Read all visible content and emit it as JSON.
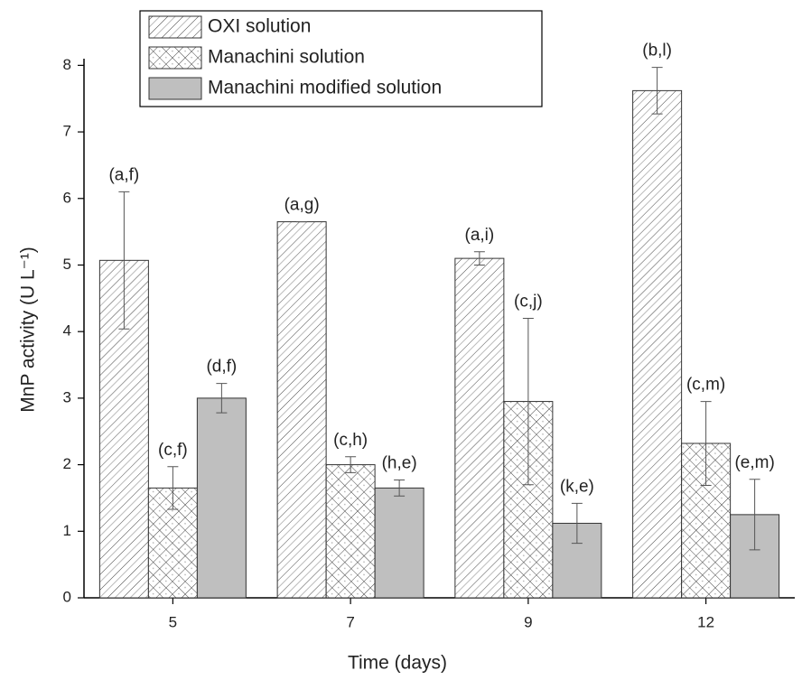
{
  "chart_data": {
    "type": "bar",
    "x_label": "Time (days)",
    "y_label": "MnP activity (U L⁻¹)",
    "categories": [
      "5",
      "7",
      "9",
      "12"
    ],
    "series": [
      {
        "name": "OXI solution",
        "color": "#ffffff",
        "pattern": "hatch",
        "values": [
          5.07,
          5.65,
          5.1,
          7.62
        ],
        "errors": [
          1.03,
          0,
          0.1,
          0.35
        ],
        "annotations": [
          "(a,f)",
          "(a,g)",
          "(a,i)",
          "(b,l)"
        ]
      },
      {
        "name": "Manachini solution",
        "color": "#ffffff",
        "pattern": "crosshatch",
        "values": [
          1.65,
          2.0,
          2.95,
          2.32
        ],
        "errors": [
          0.32,
          0.12,
          1.25,
          0.63
        ],
        "annotations": [
          "(c,f)",
          "(c,h)",
          "(c,j)",
          "(c,m)"
        ]
      },
      {
        "name": "Manachini modified solution",
        "color": "#bfbfbf",
        "pattern": "solid",
        "values": [
          3.0,
          1.65,
          1.12,
          1.25
        ],
        "errors": [
          0.22,
          0.12,
          0.3,
          0.53
        ],
        "annotations": [
          "(d,f)",
          "(h,e)",
          "(k,e)",
          "(e,m)"
        ]
      }
    ],
    "ylim": [
      0,
      8.1
    ],
    "yticks": [
      0,
      1,
      2,
      3,
      4,
      5,
      6,
      7,
      8
    ]
  }
}
